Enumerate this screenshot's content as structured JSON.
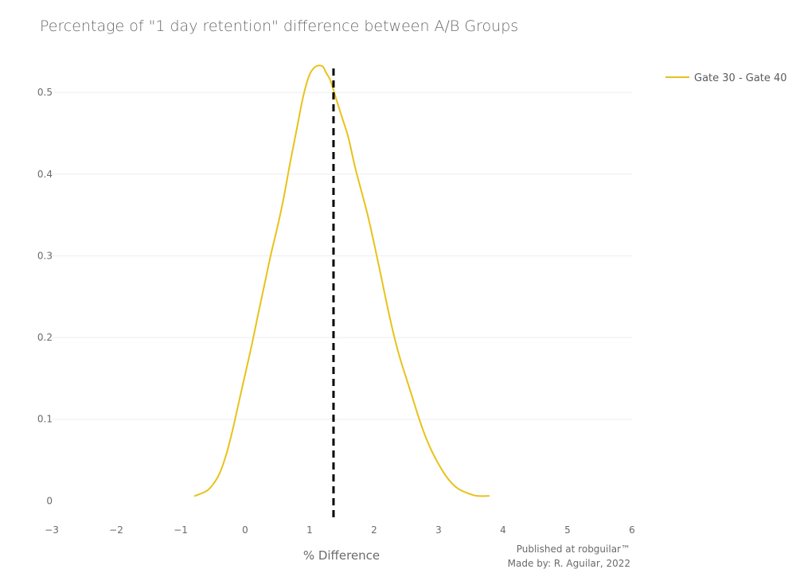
{
  "chart_data": {
    "type": "line",
    "title": "Percentage of \"1 day retention\" difference between A/B Groups",
    "xlabel": "% Difference",
    "ylabel": "",
    "xlim": [
      -3,
      6
    ],
    "ylim": [
      -0.025,
      0.545
    ],
    "x_ticks": [
      -3,
      -2,
      -1,
      0,
      1,
      2,
      3,
      4,
      5,
      6
    ],
    "x_tick_labels": [
      "−3",
      "−2",
      "−1",
      "0",
      "1",
      "2",
      "3",
      "4",
      "5",
      "6"
    ],
    "y_ticks": [
      0,
      0.1,
      0.2,
      0.3,
      0.4,
      0.5
    ],
    "y_tick_labels": [
      "0",
      "0.1",
      "0.2",
      "0.3",
      "0.4",
      "0.5"
    ],
    "grid": true,
    "legend_position": "top-right",
    "series": [
      {
        "name": "Gate 30 - Gate 40",
        "color": "#e8c21a",
        "x": [
          -0.78,
          -0.6,
          -0.5,
          -0.4,
          -0.3,
          -0.2,
          -0.1,
          0.0,
          0.1,
          0.2,
          0.3,
          0.4,
          0.5,
          0.6,
          0.7,
          0.8,
          0.9,
          1.0,
          1.1,
          1.2,
          1.25,
          1.32,
          1.4,
          1.5,
          1.6,
          1.7,
          1.8,
          1.9,
          2.0,
          2.1,
          2.2,
          2.3,
          2.4,
          2.5,
          2.6,
          2.7,
          2.8,
          2.9,
          3.0,
          3.1,
          3.2,
          3.3,
          3.4,
          3.5,
          3.6,
          3.78
        ],
        "values": [
          0.006,
          0.012,
          0.02,
          0.033,
          0.055,
          0.085,
          0.12,
          0.155,
          0.19,
          0.228,
          0.265,
          0.302,
          0.335,
          0.372,
          0.415,
          0.455,
          0.495,
          0.522,
          0.532,
          0.532,
          0.525,
          0.515,
          0.495,
          0.47,
          0.445,
          0.41,
          0.38,
          0.35,
          0.315,
          0.278,
          0.24,
          0.205,
          0.175,
          0.15,
          0.125,
          0.1,
          0.078,
          0.06,
          0.045,
          0.032,
          0.022,
          0.015,
          0.011,
          0.008,
          0.006,
          0.006
        ]
      }
    ],
    "reference_line": {
      "x": 1.37,
      "style": "dashed",
      "color": "#000000"
    },
    "annotations": [
      "Published at robguilar™",
      "Made by:  R. Aguilar, 2022"
    ]
  }
}
